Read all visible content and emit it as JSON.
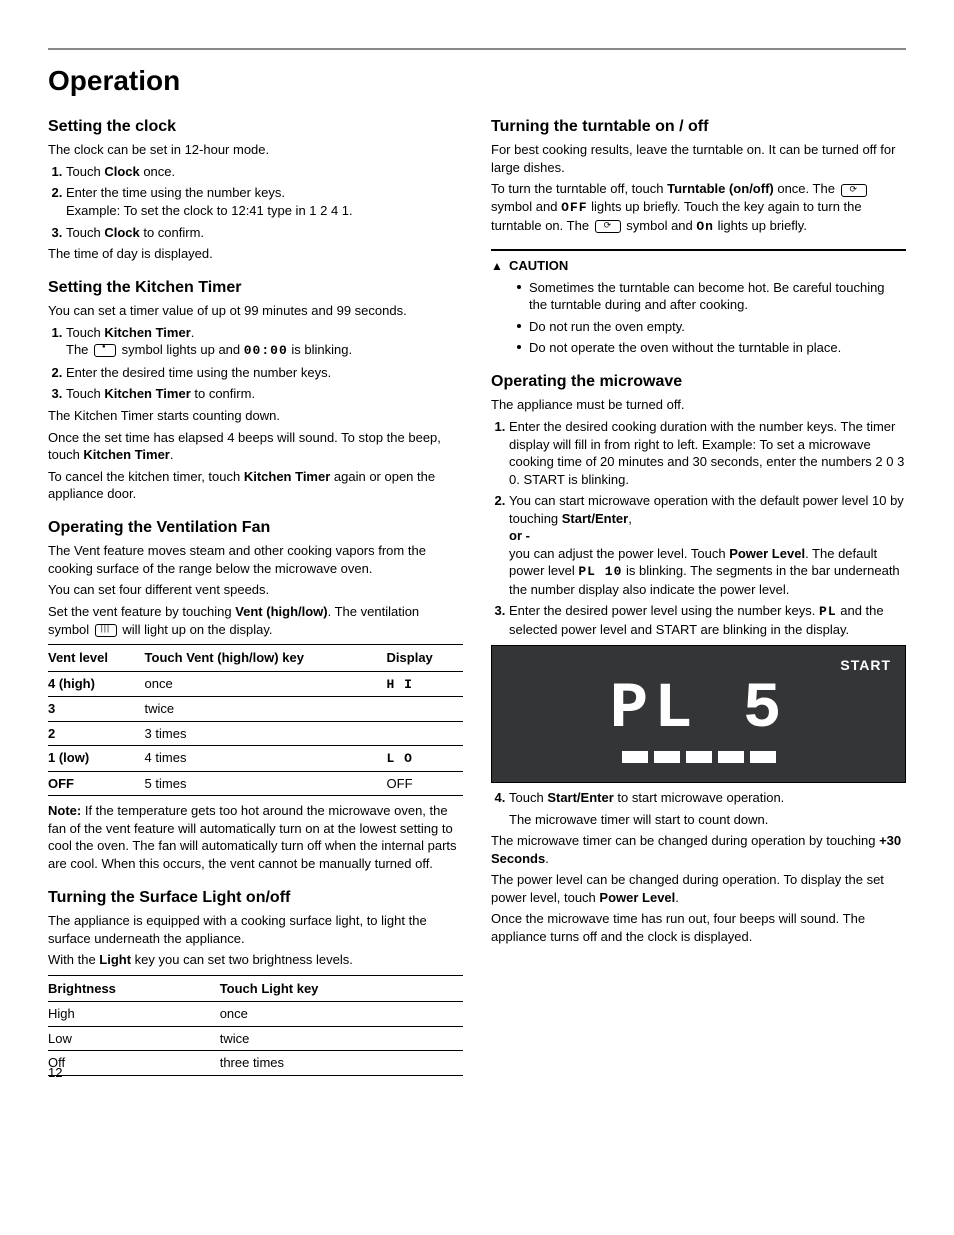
{
  "page_number": "12",
  "main_heading": "Operation",
  "left": {
    "clock": {
      "heading": "Setting the clock",
      "intro": "The clock can be set in 12-hour mode.",
      "steps": [
        "Touch <b>Clock</b> once.",
        "Enter the time using the number keys.<br>Example: To set the clock to 12:41 type in 1 2 4 1.",
        "Touch <b>Clock</b> to confirm."
      ],
      "outro": "The time of day is displayed."
    },
    "timer": {
      "heading": "Setting the Kitchen Timer",
      "intro": "You can set a timer value of up ot 99 minutes and 99 seconds.",
      "step1_pre": "Touch <b>Kitchen Timer</b>.",
      "step1_post_a": "The ",
      "step1_post_b": " symbol lights up and ",
      "step1_seg": "00:00",
      "step1_post_c": " is blinking.",
      "step2": "Enter the desired time using the number keys.",
      "step3": "Touch <b>Kitchen Timer</b> to confirm.",
      "outro1": "The Kitchen Timer starts counting down.",
      "outro2": "Once the set time has elapsed 4 beeps will sound. To stop the beep, touch <b>Kitchen Timer</b>.",
      "outro3": "To cancel the kitchen timer, touch <b>Kitchen Timer</b> again or open the appliance door."
    },
    "vent": {
      "heading": "Operating the Ventilation Fan",
      "p1": "The Vent feature moves steam and other cooking vapors from the cooking surface of the range below the microwave oven.",
      "p2": "You can set four different vent speeds.",
      "p3_a": "Set the vent feature by touching <b>Vent (high/low)</b>. The ventilation symbol ",
      "p3_b": " will light up on the display.",
      "table_headers": [
        "Vent level",
        "Touch Vent (high/low) key",
        "Display"
      ],
      "table_rows": [
        [
          "<b>4 (high)</b>",
          "once",
          "<span class='seg'>H I</span>"
        ],
        [
          "<b>3</b>",
          "twice",
          ""
        ],
        [
          "<b>2</b>",
          "3 times",
          ""
        ],
        [
          "<b>1 (low)</b>",
          "4 times",
          "<span class='seg'>L O</span>"
        ],
        [
          "<b>OFF</b>",
          "5 times",
          "OFF"
        ]
      ],
      "note": "<b>Note:</b>  If the temperature gets too hot around the microwave oven, the fan of the vent feature will automatically turn on at the lowest setting to cool the oven. The fan will automatically turn off when the internal parts are cool. When this occurs, the vent cannot be manually turned off."
    },
    "light": {
      "heading": "Turning the Surface Light on/off",
      "p1": "The appliance is equipped with a cooking surface light, to light the surface underneath the appliance.",
      "p2": "With the <b>Light</b> key you can set two brightness levels.",
      "table_headers": [
        "Brightness",
        "Touch Light key"
      ],
      "table_rows": [
        [
          "High",
          "once"
        ],
        [
          "Low",
          "twice"
        ],
        [
          "Off",
          "three times"
        ]
      ]
    }
  },
  "right": {
    "turntable": {
      "heading": "Turning the turntable on / off",
      "p1": "For best cooking results, leave the turntable on. It can be turned off for large dishes.",
      "p2_parts": {
        "a": "To turn the turntable off, touch <b>Turntable (on/off)</b> once. The ",
        "b": " symbol and ",
        "off_seg": "OFF",
        "c": " lights up briefly. Touch the key again to turn the turntable on. The ",
        "d": " symbol and ",
        "on_seg": "On",
        "e": " lights up briefly."
      }
    },
    "caution": {
      "heading": "CAUTION",
      "items": [
        "Sometimes the turntable can become hot. Be careful touching the turntable during and after cooking.",
        "Do not run the oven empty.",
        "Do not operate the oven without the turntable in place."
      ]
    },
    "microwave": {
      "heading": "Operating the microwave",
      "intro": "The appliance must be turned off.",
      "step1": "Enter the desired cooking duration with the number keys. The timer display will fill in from right to left. Example: To set a microwave cooking time of 20 minutes and 30 seconds, enter the numbers 2 0 3 0. START is blinking.",
      "step2": "You can start microwave operation with the default power level 10 by touching <b>Start/Enter</b>,<br><b>or -</b><br>you can adjust the power level. Touch <b>Power Level</b>. The default power level <span class='seg'>PL 10</span> is blinking. The segments in the bar underneath the number display also indicate the power level.",
      "step3": "Enter the desired power level using the number keys. <span class='seg'>PL</span> and the selected power level and START are blinking in the display.",
      "display": {
        "start": "START",
        "seg": "PL  5",
        "bars": 5
      },
      "step4_a": "Touch <b>Start/Enter</b> to start microwave operation.",
      "step4_b": "The microwave timer will start to count down.",
      "p_after1": "The microwave timer can be changed during operation by touching <b>+30 Seconds</b>.",
      "p_after2": "The power level can be changed during operation. To display the set power level, touch <b>Power Level</b>.",
      "p_after3": "Once the microwave time has run out, four beeps will sound. The appliance turns off and the clock is displayed."
    }
  }
}
